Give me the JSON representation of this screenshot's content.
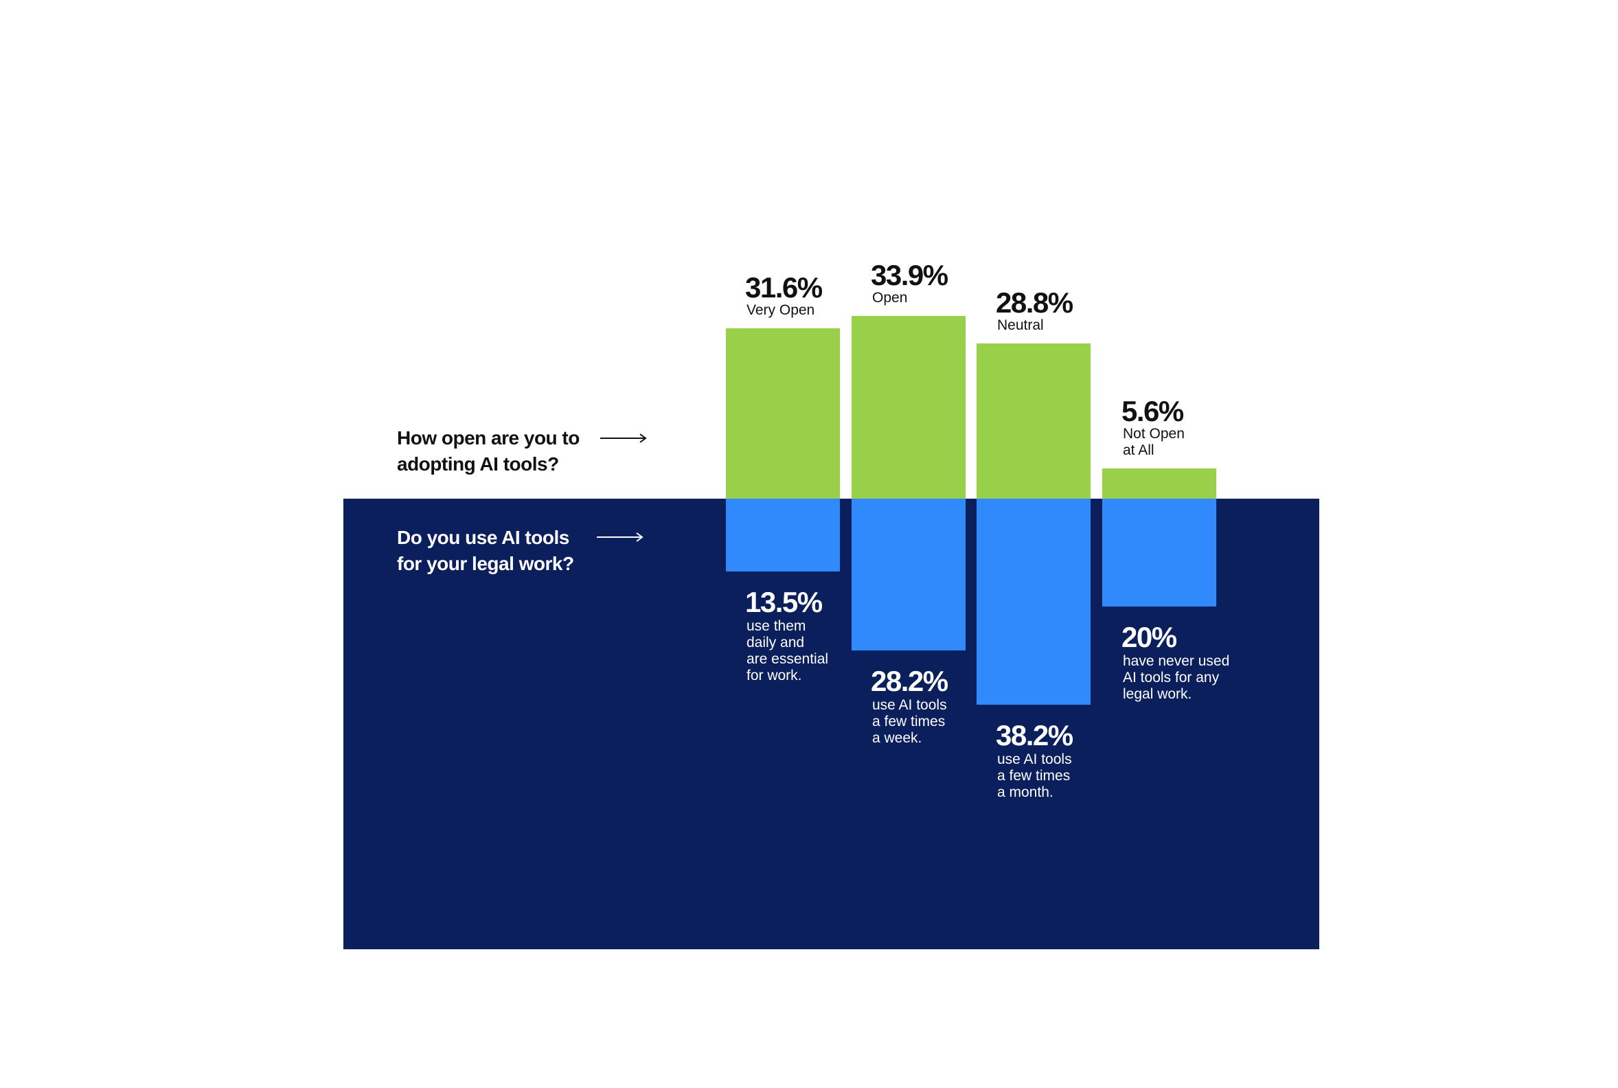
{
  "colors": {
    "panel": "#0b1f5c",
    "green": "#99d04a",
    "blue": "#318afb",
    "text_dark": "#111111",
    "text_light": "#ffffff"
  },
  "questions": {
    "top": "How open are you to\nadopting AI tools?",
    "bottom": "Do you use AI tools\nfor your legal work?"
  },
  "chart_data": {
    "type": "bar",
    "grid": false,
    "series": [
      {
        "question": "How open are you to adopting AI tools?",
        "direction": "up",
        "values": [
          31.6,
          33.9,
          28.8,
          5.6
        ],
        "value_labels": [
          "31.6%",
          "33.9%",
          "28.8%",
          "5.6%"
        ],
        "descriptions": [
          "Very Open",
          "Open",
          "Neutral",
          "Not Open\nat All"
        ]
      },
      {
        "question": "Do you use AI tools for your legal work?",
        "direction": "down",
        "values": [
          13.5,
          28.2,
          38.2,
          20
        ],
        "value_labels": [
          "13.5%",
          "28.2%",
          "38.2%",
          "20%"
        ],
        "descriptions": [
          "use them\ndaily and\nare essential\nfor work.",
          "use AI tools\na few times\na week.",
          "use AI tools\na few times\na month.",
          "have never used\nAI tools for any\nlegal work."
        ]
      }
    ]
  }
}
